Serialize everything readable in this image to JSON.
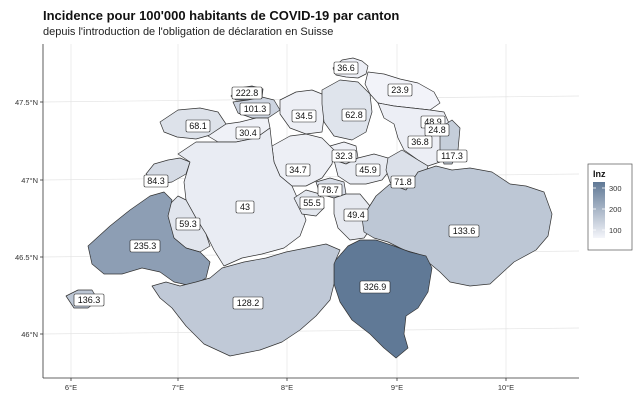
{
  "title": "Incidence pour 100'000 habitants de COVID-19 par canton",
  "subtitle": "depuis l'introduction de l'obligation de déclaration en Suisse",
  "legend": {
    "title": "Inz",
    "ticks": [
      "300",
      "200",
      "100"
    ],
    "color_low": "#f4f5fa",
    "color_high": "#5f7895"
  },
  "axes": {
    "x_ticks": [
      "6°E",
      "7°E",
      "8°E",
      "9°E",
      "10°E"
    ],
    "y_ticks": [
      "47.5°N",
      "47°N",
      "46.5°N",
      "46°N"
    ]
  },
  "cantons": [
    {
      "value": 36.6
    },
    {
      "value": 222.8
    },
    {
      "value": 23.9
    },
    {
      "value": 101.3
    },
    {
      "value": 68.1
    },
    {
      "value": 34.5
    },
    {
      "value": 62.8
    },
    {
      "value": 30.4
    },
    {
      "value": 48.9
    },
    {
      "value": 24.8
    },
    {
      "value": 36.8
    },
    {
      "value": 117.3
    },
    {
      "value": 32.3
    },
    {
      "value": 84.3
    },
    {
      "value": 34.7
    },
    {
      "value": 45.9
    },
    {
      "value": 71.8
    },
    {
      "value": 78.7
    },
    {
      "value": 43
    },
    {
      "value": 59.3
    },
    {
      "value": 55.5
    },
    {
      "value": 49.4
    },
    {
      "value": 235.3
    },
    {
      "value": 133.6
    },
    {
      "value": 326.9
    },
    {
      "value": 136.3
    },
    {
      "value": 128.2
    }
  ]
}
